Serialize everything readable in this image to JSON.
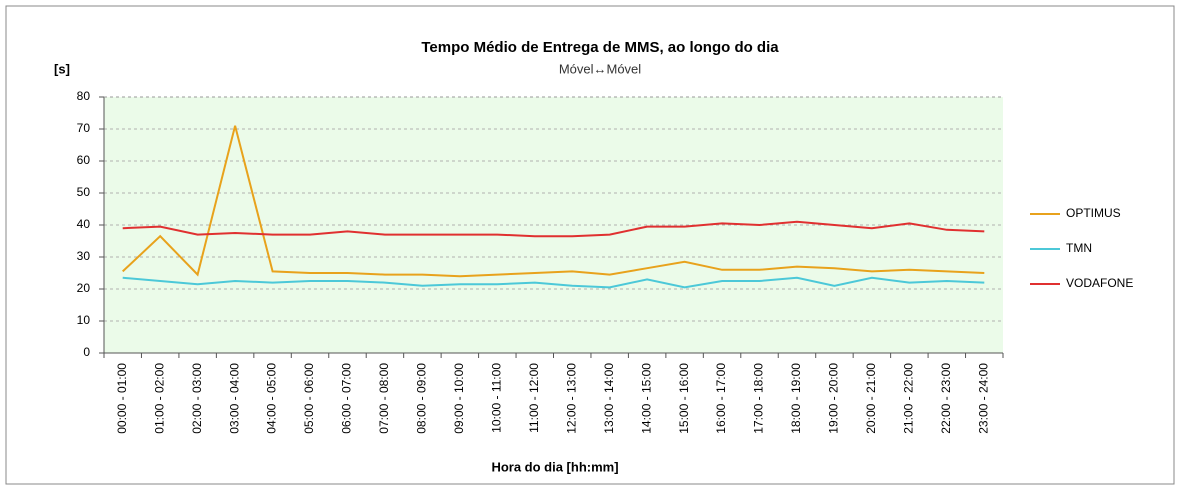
{
  "chart_data": {
    "type": "line",
    "title": "Tempo Médio de Entrega de MMS, ao longo do dia",
    "subtitle": "Móvel↔Móvel",
    "y_label": "[s]",
    "x_label": "Hora do dia [hh:mm]",
    "categories": [
      "00:00 - 01:00",
      "01:00 - 02:00",
      "02:00 - 03:00",
      "03:00 - 04:00",
      "04:00 - 05:00",
      "05:00 - 06:00",
      "06:00 - 07:00",
      "07:00 - 08:00",
      "08:00 - 09:00",
      "09:00 - 10:00",
      "10:00 - 11:00",
      "11:00 - 12:00",
      "12:00 - 13:00",
      "13:00 - 14:00",
      "14:00 - 15:00",
      "15:00 - 16:00",
      "16:00 - 17:00",
      "17:00 - 18:00",
      "18:00 - 19:00",
      "19:00 - 20:00",
      "20:00 - 21:00",
      "21:00 - 22:00",
      "22:00 - 23:00",
      "23:00 - 24:00"
    ],
    "series": [
      {
        "name": "OPTIMUS",
        "color": "#e8a21c",
        "values": [
          25.5,
          36.5,
          24.5,
          71,
          25.5,
          25,
          25,
          24.5,
          24.5,
          24,
          24.5,
          25,
          25.5,
          24.5,
          26.5,
          28.5,
          26,
          26,
          27,
          26.5,
          25.5,
          26,
          25.5,
          25
        ]
      },
      {
        "name": "TMN",
        "color": "#4cc8d8",
        "values": [
          23.5,
          22.5,
          21.5,
          22.5,
          22,
          22.5,
          22.5,
          22,
          21,
          21.5,
          21.5,
          22,
          21,
          20.5,
          23,
          20.5,
          22.5,
          22.5,
          23.5,
          21,
          23.5,
          22,
          22.5,
          22
        ]
      },
      {
        "name": "VODAFONE",
        "color": "#e03030",
        "values": [
          39,
          39.5,
          37,
          37.5,
          37,
          37,
          38,
          37,
          37,
          37,
          37,
          36.5,
          36.5,
          37,
          39.5,
          39.5,
          40.5,
          40,
          41,
          40,
          39,
          40.5,
          38.5,
          38
        ]
      }
    ],
    "ylim": [
      0,
      80
    ],
    "yticks": [
      0,
      10,
      20,
      30,
      40,
      50,
      60,
      70,
      80
    ],
    "grid": true,
    "legend": "right",
    "plot_background": "#ebfbe9"
  }
}
